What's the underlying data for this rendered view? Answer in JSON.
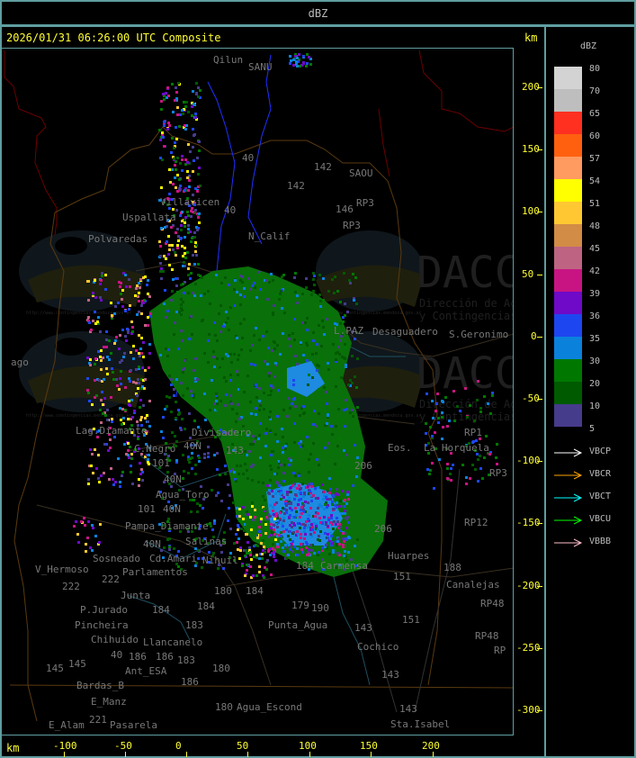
{
  "header": {
    "title": "dBZ"
  },
  "map": {
    "timestamp": "2026/01/31 06:26:00 UTC Composite",
    "unit_right": "km",
    "unit_bottom": "km",
    "x_ticks": [
      "-100",
      "-50",
      "0",
      "50",
      "100",
      "150",
      "200"
    ],
    "y_ticks": [
      "200",
      "150",
      "100",
      "50",
      "0",
      "-50",
      "-100",
      "-150",
      "-200",
      "-250",
      "-300"
    ],
    "watermark": {
      "logo": "DACC",
      "line1": "Dirección de Agricultura",
      "line2": "y Contingencias Climáticas",
      "url": "http://www.contingencias.mendoza.gov.ar"
    },
    "places": [
      "Qilun",
      "SANU",
      "40",
      "40",
      "142",
      "142",
      "Villavicen",
      "Uspallata",
      "Polvaredas",
      "N_Calif",
      "S.Geronimo",
      "SAOU",
      "Desaguadero",
      "L.PAZ",
      "146",
      "RP3",
      "RP3",
      "RP1",
      "ago",
      "Lag.Diamante",
      "C.Negro",
      "Divisadero",
      "40N",
      "101",
      "143",
      "40N",
      "Agua_Toro",
      "40N",
      "Pampa_Diamante",
      "101",
      "40N",
      "Salinas",
      "Cd.Amari",
      "Parlamentos",
      "Sosneado",
      "Nihuil",
      "V_Hermoso",
      "222",
      "222",
      "Junta",
      "180",
      "184",
      "184",
      "184",
      "P.Jurado",
      "Pincheira",
      "183",
      "Llancanelo",
      "Chihuido",
      "186",
      "186",
      "40",
      "Ant_ESA",
      "183",
      "145",
      "145",
      "Bardas_B",
      "180",
      "186",
      "E_Manz",
      "180",
      "Agua_Escond",
      "221",
      "E_Alam",
      "Pasarela",
      "Eos.",
      "La Horquela",
      "206",
      "206",
      "Huarpes",
      "151",
      "151",
      "188",
      "Canalejas",
      "184",
      "Carmensa",
      "179",
      "190",
      "Punta_Agua",
      "143",
      "Cochico",
      "143",
      "143",
      "Sta.Isabel",
      "RP3",
      "RP12",
      "RP48",
      "RP48",
      "RP"
    ]
  },
  "legend": {
    "title": "dBZ",
    "scale": [
      {
        "label": "80",
        "color": "#d3d3d3"
      },
      {
        "label": "70",
        "color": "#bebebe"
      },
      {
        "label": "65",
        "color": "#ff3020"
      },
      {
        "label": "60",
        "color": "#ff6010"
      },
      {
        "label": "57",
        "color": "#ff9a60"
      },
      {
        "label": "54",
        "color": "#ffff00"
      },
      {
        "label": "51",
        "color": "#ffc832"
      },
      {
        "label": "48",
        "color": "#d28c46"
      },
      {
        "label": "45",
        "color": "#be6482"
      },
      {
        "label": "42",
        "color": "#c81482"
      },
      {
        "label": "39",
        "color": "#6e0ac8"
      },
      {
        "label": "36",
        "color": "#1e46f0"
      },
      {
        "label": "35",
        "color": "#0a82dc"
      },
      {
        "label": "30",
        "color": "#007800"
      },
      {
        "label": "20",
        "color": "#005a00"
      },
      {
        "label": "10",
        "color": "#463c8c"
      },
      {
        "label": "5",
        "color": ""
      }
    ],
    "vectors": [
      {
        "label": "VBCP",
        "color": "#ffffff"
      },
      {
        "label": "VBCR",
        "color": "#ffa500"
      },
      {
        "label": "VBCT",
        "color": "#00ffff"
      },
      {
        "label": "VBCU",
        "color": "#00ff00"
      },
      {
        "label": "VBBB",
        "color": "#ffc0cb"
      }
    ]
  }
}
